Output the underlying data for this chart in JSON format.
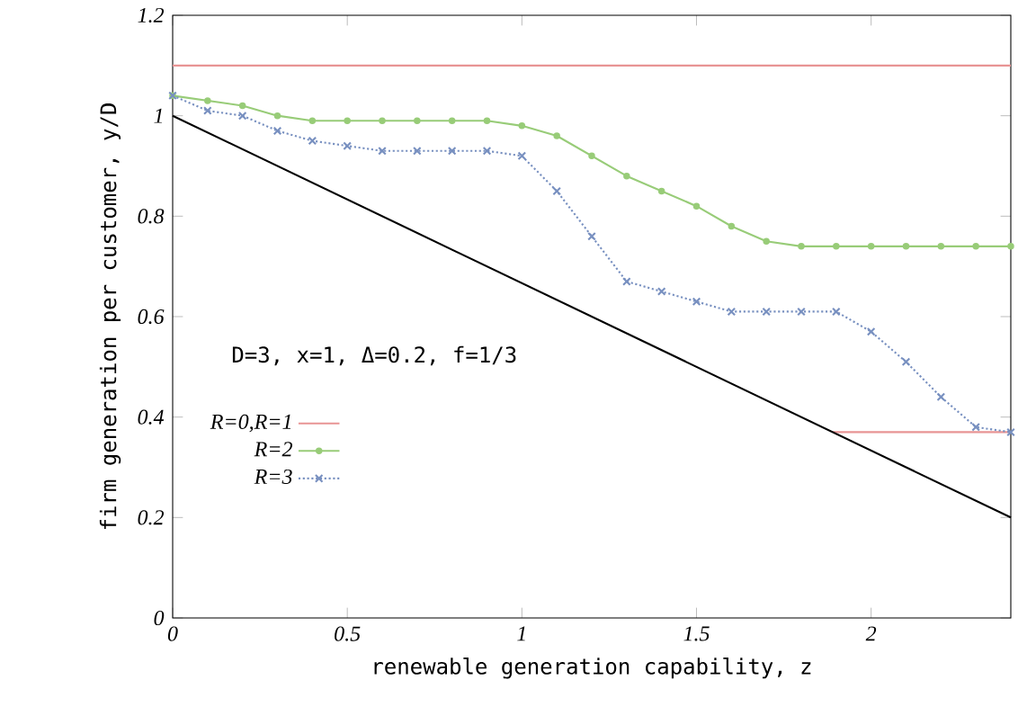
{
  "chart_data": {
    "type": "line",
    "xlabel": "renewable generation capability, z",
    "ylabel": "firm generation per customer, y/D",
    "xlim": [
      0,
      2.4
    ],
    "ylim": [
      0,
      1.2
    ],
    "xticks": [
      0,
      0.5,
      1,
      1.5,
      2
    ],
    "yticks": [
      0,
      0.2,
      0.4,
      0.6,
      0.8,
      1,
      1.2
    ],
    "grid": false,
    "legend": "left",
    "annotations": [
      "D=3, x=1, Δ=0.2, f=1/3"
    ],
    "series": [
      {
        "name": "R=0,R=1",
        "color": "#e89494",
        "marker": "none",
        "line_style": "solid",
        "x": [
          0,
          2.4
        ],
        "values": [
          1.1,
          1.1
        ]
      },
      {
        "color": "#e89494",
        "marker": "none",
        "line_style": "solid",
        "x": [
          1.89,
          2.4
        ],
        "values": [
          0.37,
          0.37
        ]
      },
      {
        "name": "R=2",
        "color": "#98cc78",
        "marker": "circle",
        "line_style": "solid",
        "x": [
          0,
          0.1,
          0.2,
          0.3,
          0.4,
          0.5,
          0.6,
          0.7,
          0.8,
          0.9,
          1.0,
          1.1,
          1.2,
          1.3,
          1.4,
          1.5,
          1.6,
          1.7,
          1.8,
          1.9,
          2.0,
          2.1,
          2.2,
          2.3,
          2.4
        ],
        "values": [
          1.04,
          1.03,
          1.02,
          1.0,
          0.99,
          0.99,
          0.99,
          0.99,
          0.99,
          0.99,
          0.98,
          0.96,
          0.92,
          0.88,
          0.85,
          0.82,
          0.78,
          0.75,
          0.74,
          0.74,
          0.74,
          0.74,
          0.74,
          0.74,
          0.74
        ]
      },
      {
        "name": "R=3",
        "color": "#7890c0",
        "marker": "cross",
        "line_style": "dotted",
        "x": [
          0,
          0.1,
          0.2,
          0.3,
          0.4,
          0.5,
          0.6,
          0.7,
          0.8,
          0.9,
          1.0,
          1.1,
          1.2,
          1.3,
          1.4,
          1.5,
          1.6,
          1.7,
          1.8,
          1.9,
          2.0,
          2.1,
          2.2,
          2.3,
          2.4
        ],
        "values": [
          1.04,
          1.01,
          1.0,
          0.97,
          0.95,
          0.94,
          0.93,
          0.93,
          0.93,
          0.93,
          0.92,
          0.85,
          0.76,
          0.67,
          0.65,
          0.63,
          0.61,
          0.61,
          0.61,
          0.61,
          0.57,
          0.51,
          0.44,
          0.38,
          0.37
        ]
      },
      {
        "color": "#000000",
        "marker": "none",
        "line_style": "solid",
        "x": [
          0,
          2.4
        ],
        "values": [
          1,
          0.2
        ]
      }
    ]
  }
}
